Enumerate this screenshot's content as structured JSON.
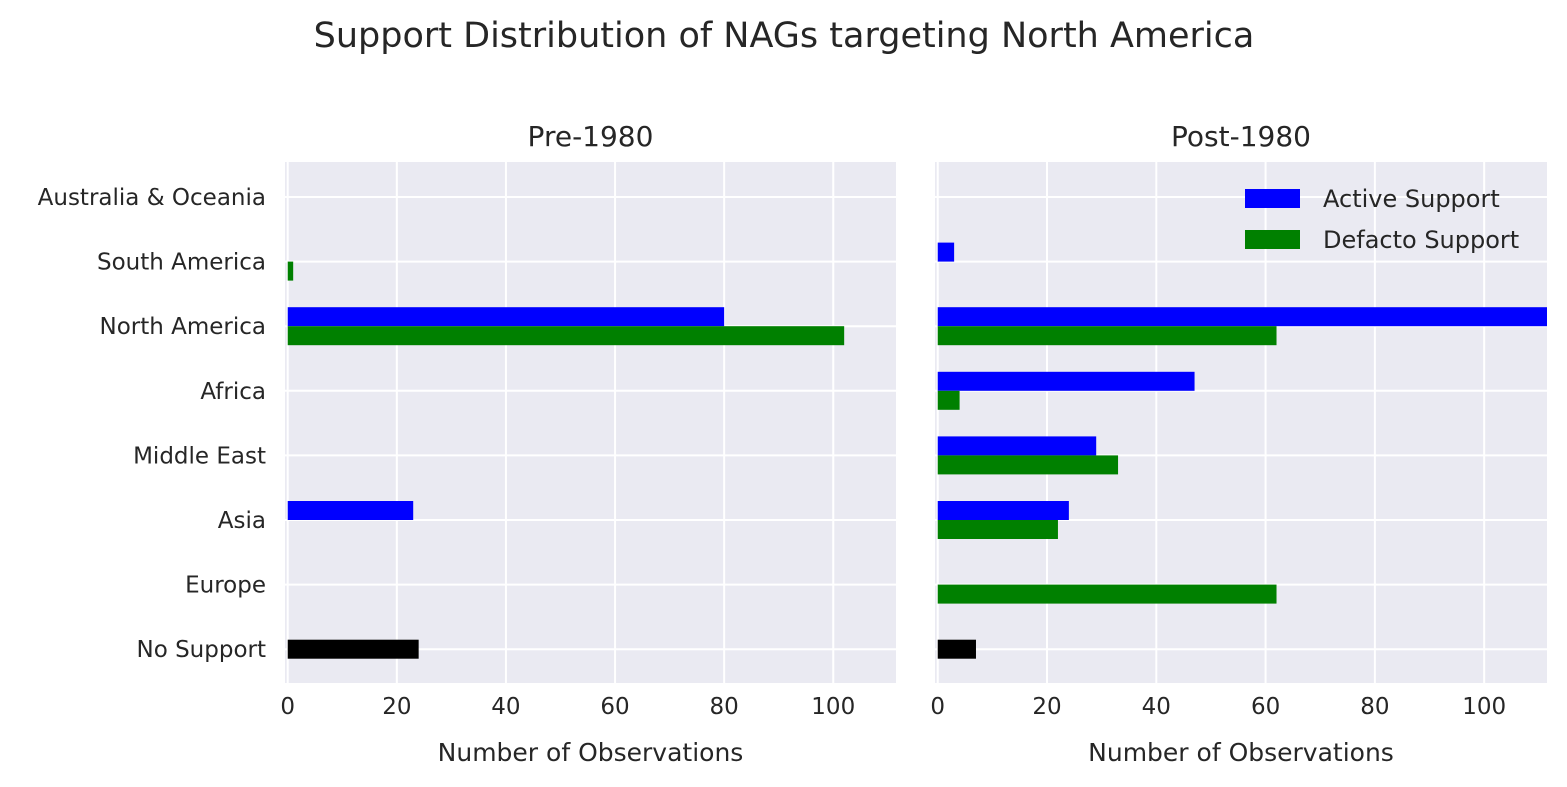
{
  "chart_data": {
    "title": "Support Distribution of NAGs targeting North America",
    "categories": [
      "Australia & Oceania",
      "South America",
      "North America",
      "Africa",
      "Middle East",
      "Asia",
      "Europe",
      "No Support"
    ],
    "xlim": [
      -0.5,
      111.5
    ],
    "xticks": [
      0,
      20,
      40,
      60,
      80,
      100
    ],
    "background": "#eaeaf2",
    "grid": true,
    "legend": {
      "placement": "top-right",
      "entries": [
        {
          "label": "Active Support",
          "color": "#0000ff"
        },
        {
          "label": "Defacto Support",
          "color": "#008000"
        }
      ]
    },
    "no_support_color": "#000000",
    "panels": [
      {
        "type": "bar",
        "orientation": "horizontal",
        "title": "Pre-1980",
        "xlabel": "Number of Observations",
        "series": [
          {
            "name": "Active Support",
            "color": "#0000ff",
            "values": [
              0,
              0,
              80,
              0,
              0,
              23,
              0,
              null
            ]
          },
          {
            "name": "Defacto Support",
            "color": "#008000",
            "values": [
              0,
              1,
              102,
              0,
              0,
              0,
              0,
              null
            ]
          }
        ],
        "no_support": 24,
        "show_legend": false,
        "show_category_labels": true
      },
      {
        "type": "bar",
        "orientation": "horizontal",
        "title": "Post-1980",
        "xlabel": "Number of Observations",
        "series": [
          {
            "name": "Active Support",
            "color": "#0000ff",
            "values": [
              0,
              3,
              112,
              47,
              29,
              24,
              0,
              null
            ]
          },
          {
            "name": "Defacto Support",
            "color": "#008000",
            "values": [
              0,
              0,
              62,
              4,
              33,
              22,
              62,
              null
            ]
          }
        ],
        "no_support": 7,
        "show_legend": true,
        "show_category_labels": false
      }
    ]
  }
}
